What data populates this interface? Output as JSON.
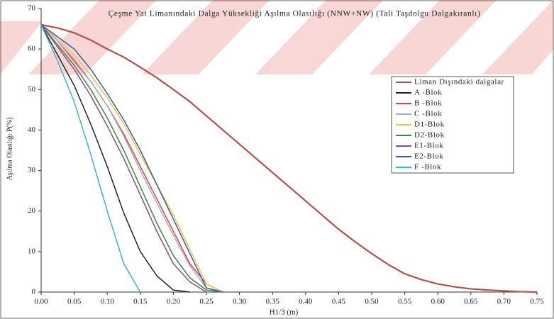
{
  "chart_data": {
    "type": "line",
    "title": "Çeşme Yat Limanındaki Dalga Yüksekliği Aşılma Olasılığı  (NNW+NW) (Tali Taşdolgu Dalgakıranlı)",
    "x_label": "H1/3 (m)",
    "y_label": "Aşılma Olasılığı P(%)",
    "x": [
      0,
      0.025,
      0.05,
      0.075,
      0.1,
      0.125,
      0.15,
      0.175,
      0.2,
      0.225,
      0.25,
      0.275,
      0.3,
      0.325,
      0.35,
      0.375,
      0.4,
      0.425,
      0.45,
      0.475,
      0.5,
      0.525,
      0.55,
      0.575,
      0.6,
      0.625,
      0.65,
      0.675,
      0.7,
      0.725,
      0.75
    ],
    "series": [
      {
        "name": "Liman Dışındaki dalgalar",
        "color": "#b5504b",
        "values": [
          66,
          65.2,
          64,
          62.2,
          60,
          58,
          55.5,
          52.9,
          50,
          47,
          43.5,
          40,
          36.5,
          33,
          29.5,
          26,
          22.5,
          19,
          15.5,
          12.4,
          9.5,
          6.8,
          4.5,
          3.1,
          2,
          1.3,
          0.8,
          0.5,
          0.3,
          0.1,
          0
        ]
      },
      {
        "name": "A -Blok",
        "color": "#222222",
        "values": [
          66,
          58.5,
          51,
          41.5,
          31,
          19.5,
          10,
          4,
          0.5,
          0,
          null,
          null,
          null,
          null,
          null,
          null,
          null,
          null,
          null,
          null,
          null,
          null,
          null,
          null,
          null,
          null,
          null,
          null,
          null,
          null,
          null
        ]
      },
      {
        "name": "B -Blok",
        "color": "#e0443c",
        "values": [
          66,
          62,
          57,
          52,
          46,
          39,
          31,
          23,
          15,
          7,
          2,
          0,
          null,
          null,
          null,
          null,
          null,
          null,
          null,
          null,
          null,
          null,
          null,
          null,
          null,
          null,
          null,
          null,
          null,
          null,
          null
        ]
      },
      {
        "name": "C -Blok",
        "color": "#a9a6d8",
        "values": [
          66,
          62,
          57.5,
          52,
          46,
          38.5,
          30,
          22,
          14,
          6.5,
          1,
          0,
          null,
          null,
          null,
          null,
          null,
          null,
          null,
          null,
          null,
          null,
          null,
          null,
          null,
          null,
          null,
          null,
          null,
          null,
          null
        ]
      },
      {
        "name": "D1-Blok",
        "color": "#f2c43e",
        "values": [
          66,
          62.5,
          58.5,
          53.5,
          48,
          41.5,
          34,
          26.5,
          19,
          10.5,
          2,
          0,
          null,
          null,
          null,
          null,
          null,
          null,
          null,
          null,
          null,
          null,
          null,
          null,
          null,
          null,
          null,
          null,
          null,
          null,
          null
        ]
      },
      {
        "name": "D2-Blok",
        "color": "#3a8a3a",
        "values": [
          66,
          61,
          56,
          50,
          43,
          35,
          26,
          17,
          9,
          3.5,
          0.5,
          0,
          null,
          null,
          null,
          null,
          null,
          null,
          null,
          null,
          null,
          null,
          null,
          null,
          null,
          null,
          null,
          null,
          null,
          null,
          null
        ]
      },
      {
        "name": "E1-Blok",
        "color": "#8e4a8e",
        "values": [
          66,
          60.5,
          55,
          48.5,
          41,
          33,
          24,
          15,
          7,
          2.5,
          0,
          null,
          null,
          null,
          null,
          null,
          null,
          null,
          null,
          null,
          null,
          null,
          null,
          null,
          null,
          null,
          null,
          null,
          null,
          null,
          null
        ]
      },
      {
        "name": "E2-Blok",
        "color": "#3b5ba8",
        "values": [
          66,
          63,
          60,
          55,
          49,
          42.5,
          35,
          26.5,
          18,
          9.5,
          1,
          0,
          null,
          null,
          null,
          null,
          null,
          null,
          null,
          null,
          null,
          null,
          null,
          null,
          null,
          null,
          null,
          null,
          null,
          null,
          null
        ]
      },
      {
        "name": "F -Blok",
        "color": "#3cb3d8",
        "values": [
          66,
          57,
          47,
          34,
          20,
          7,
          0,
          null,
          null,
          null,
          null,
          null,
          null,
          null,
          null,
          null,
          null,
          null,
          null,
          null,
          null,
          null,
          null,
          null,
          null,
          null,
          null,
          null,
          null,
          null,
          null
        ]
      }
    ],
    "xlim": [
      0,
      0.75
    ],
    "ylim": [
      0,
      70
    ],
    "xticks": [
      {
        "value": 0,
        "label": "0.00"
      },
      {
        "value": 0.05,
        "label": "0.05"
      },
      {
        "value": 0.1,
        "label": "0.10"
      },
      {
        "value": 0.15,
        "label": "0.15"
      },
      {
        "value": 0.2,
        "label": "0.20"
      },
      {
        "value": 0.25,
        "label": "0.25"
      },
      {
        "value": 0.3,
        "label": "0.30"
      },
      {
        "value": 0.35,
        "label": "0.35"
      },
      {
        "value": 0.4,
        "label": "0.40"
      },
      {
        "value": 0.45,
        "label": "0.45"
      },
      {
        "value": 0.5,
        "label": "0.50"
      },
      {
        "value": 0.55,
        "label": "0.55"
      },
      {
        "value": 0.6,
        "label": "0.60"
      },
      {
        "value": 0.65,
        "label": "0.65"
      },
      {
        "value": 0.7,
        "label": "0.70"
      },
      {
        "value": 0.75,
        "label": "0.75"
      }
    ],
    "yticks": [
      0,
      10,
      20,
      30,
      40,
      50,
      60,
      70
    ],
    "grid": false
  }
}
